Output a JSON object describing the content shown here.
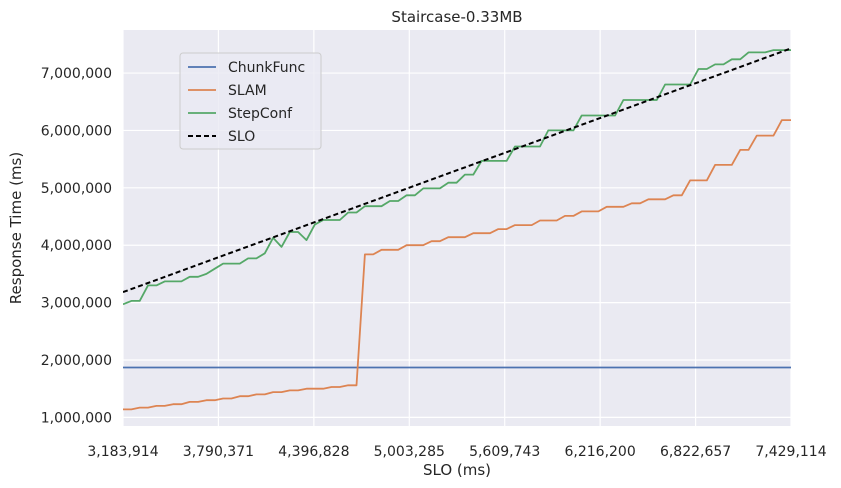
{
  "chart_data": {
    "type": "line",
    "title": "Staircase-0.33MB",
    "xlabel": "SLO (ms)",
    "ylabel": "Response Time (ms)",
    "xlim": [
      3183914,
      7429114
    ],
    "ylim": [
      850000,
      7750000
    ],
    "x_ticks": [
      3183914,
      3790371,
      4396828,
      5003285,
      5609743,
      6216200,
      6822657,
      7429114
    ],
    "x_tick_labels": [
      "3,183,914",
      "3,790,371",
      "4,396,828",
      "5,003,285",
      "5,609,743",
      "6,216,200",
      "6,822,657",
      "7,429,114"
    ],
    "y_ticks": [
      1000000,
      2000000,
      3000000,
      4000000,
      5000000,
      6000000,
      7000000
    ],
    "y_tick_labels": [
      "1,000,000",
      "2,000,000",
      "3,000,000",
      "4,000,000",
      "5,000,000",
      "6,000,000",
      "7,000,000"
    ],
    "grid": true,
    "legend_position": "upper-left",
    "series": [
      {
        "name": "ChunkFunc",
        "color": "#4c72b0",
        "style": "solid",
        "x": [
          3183914,
          7429114
        ],
        "y": [
          1870000,
          1870000
        ]
      },
      {
        "name": "SLAM",
        "color": "#dd8452",
        "style": "solid",
        "x": [
          3183914,
          3237000,
          3290000,
          3343000,
          3396000,
          3449000,
          3502000,
          3555000,
          3608000,
          3661000,
          3714000,
          3767000,
          3820000,
          3873000,
          3926000,
          3979000,
          4032000,
          4085000,
          4138000,
          4191000,
          4244000,
          4297000,
          4350000,
          4403000,
          4456000,
          4509000,
          4562000,
          4615000,
          4668000,
          4721000,
          4774000,
          4827000,
          4880000,
          4933000,
          4986000,
          5039000,
          5092000,
          5145000,
          5198000,
          5251000,
          5304000,
          5357000,
          5410000,
          5463000,
          5516000,
          5569000,
          5622000,
          5675000,
          5728000,
          5781000,
          5834000,
          5887000,
          5940000,
          5993000,
          6046000,
          6099000,
          6152000,
          6205000,
          6258000,
          6311000,
          6364000,
          6417000,
          6470000,
          6523000,
          6576000,
          6629000,
          6682000,
          6735000,
          6788000,
          6841000,
          6894000,
          6947000,
          7000000,
          7053000,
          7106000,
          7159000,
          7212000,
          7265000,
          7318000,
          7371000,
          7429114
        ],
        "y": [
          1140000,
          1140000,
          1170000,
          1170000,
          1200000,
          1200000,
          1230000,
          1230000,
          1270000,
          1270000,
          1300000,
          1300000,
          1330000,
          1330000,
          1370000,
          1370000,
          1400000,
          1400000,
          1440000,
          1440000,
          1470000,
          1470000,
          1500000,
          1500000,
          1500000,
          1530000,
          1530000,
          1560000,
          1560000,
          3840000,
          3840000,
          3920000,
          3920000,
          3920000,
          4000000,
          4000000,
          4000000,
          4070000,
          4070000,
          4140000,
          4140000,
          4140000,
          4210000,
          4210000,
          4210000,
          4280000,
          4280000,
          4350000,
          4350000,
          4350000,
          4430000,
          4430000,
          4430000,
          4510000,
          4510000,
          4590000,
          4590000,
          4590000,
          4670000,
          4670000,
          4670000,
          4730000,
          4730000,
          4800000,
          4800000,
          4800000,
          4870000,
          4870000,
          5130000,
          5130000,
          5130000,
          5400000,
          5400000,
          5400000,
          5660000,
          5660000,
          5910000,
          5910000,
          5910000,
          6180000,
          6180000
        ]
      },
      {
        "name": "StepConf",
        "color": "#55a868",
        "style": "solid",
        "x": [
          3183914,
          3237000,
          3290000,
          3343000,
          3396000,
          3449000,
          3502000,
          3555000,
          3608000,
          3661000,
          3714000,
          3767000,
          3820000,
          3873000,
          3926000,
          3979000,
          4032000,
          4085000,
          4138000,
          4191000,
          4244000,
          4297000,
          4350000,
          4403000,
          4456000,
          4509000,
          4562000,
          4615000,
          4668000,
          4721000,
          4774000,
          4827000,
          4880000,
          4933000,
          4986000,
          5039000,
          5092000,
          5145000,
          5198000,
          5251000,
          5304000,
          5357000,
          5410000,
          5463000,
          5516000,
          5569000,
          5622000,
          5675000,
          5728000,
          5781000,
          5834000,
          5887000,
          5940000,
          5993000,
          6046000,
          6099000,
          6152000,
          6205000,
          6258000,
          6311000,
          6364000,
          6417000,
          6470000,
          6523000,
          6576000,
          6629000,
          6682000,
          6735000,
          6788000,
          6841000,
          6894000,
          6947000,
          7000000,
          7053000,
          7106000,
          7159000,
          7212000,
          7265000,
          7318000,
          7371000,
          7429114
        ],
        "y": [
          2970000,
          3030000,
          3030000,
          3300000,
          3300000,
          3370000,
          3370000,
          3370000,
          3450000,
          3450000,
          3500000,
          3590000,
          3680000,
          3680000,
          3680000,
          3770000,
          3770000,
          3860000,
          4130000,
          3970000,
          4230000,
          4230000,
          4090000,
          4360000,
          4440000,
          4440000,
          4440000,
          4570000,
          4570000,
          4680000,
          4680000,
          4680000,
          4770000,
          4770000,
          4870000,
          4870000,
          4990000,
          4990000,
          4990000,
          5090000,
          5090000,
          5230000,
          5230000,
          5470000,
          5470000,
          5470000,
          5470000,
          5720000,
          5720000,
          5720000,
          5720000,
          6000000,
          6000000,
          6000000,
          6000000,
          6260000,
          6260000,
          6260000,
          6260000,
          6260000,
          6530000,
          6530000,
          6530000,
          6530000,
          6530000,
          6800000,
          6800000,
          6800000,
          6800000,
          7070000,
          7070000,
          7150000,
          7150000,
          7240000,
          7240000,
          7360000,
          7360000,
          7360000,
          7400000,
          7400000,
          7400000
        ]
      },
      {
        "name": "SLO",
        "color": "#000000",
        "style": "dashed",
        "x": [
          3183914,
          7429114
        ],
        "y": [
          3183914,
          7429114
        ]
      }
    ]
  }
}
